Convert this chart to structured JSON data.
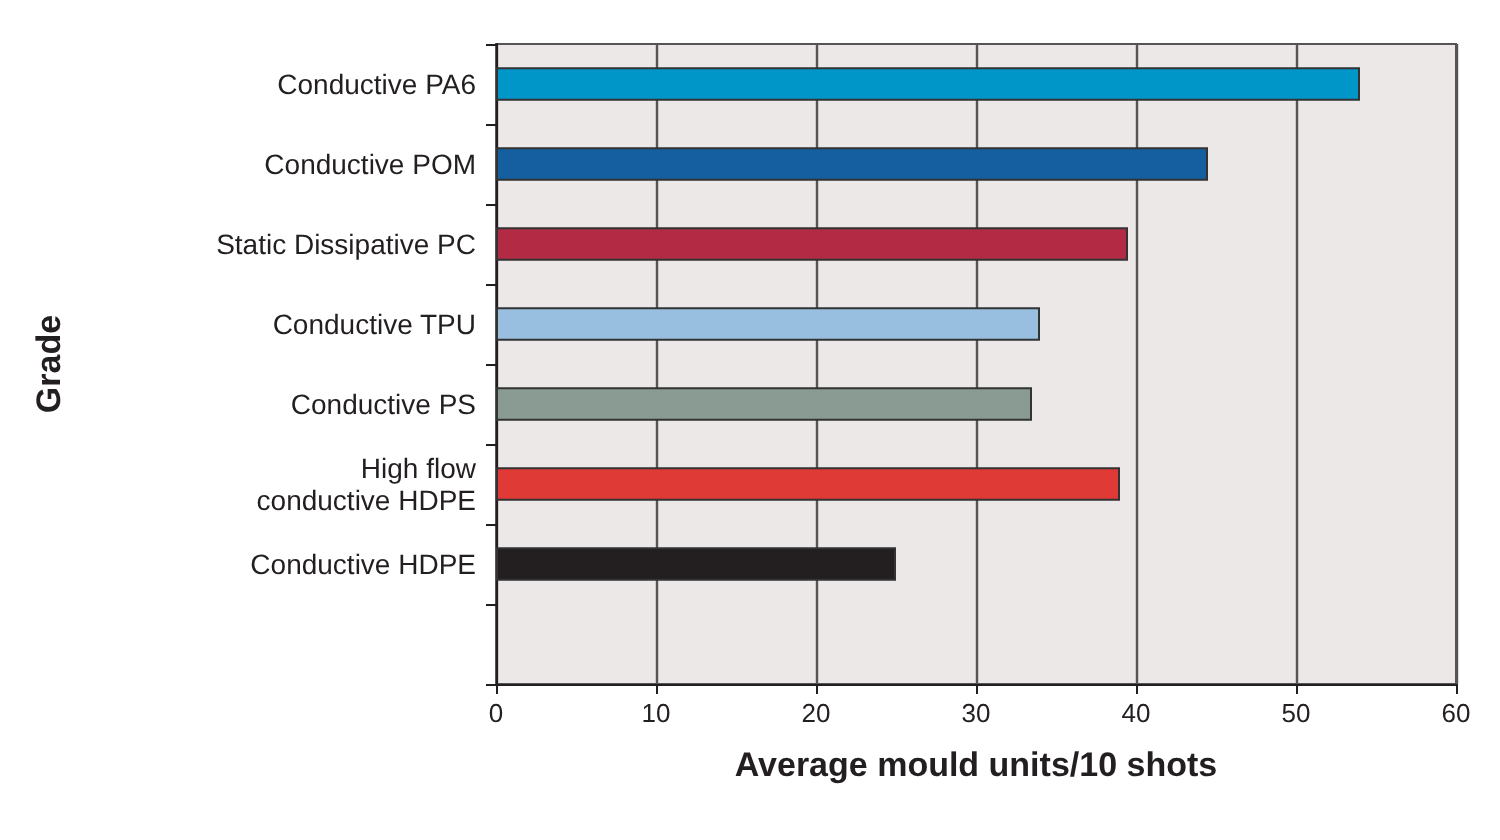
{
  "chart_data": {
    "type": "bar",
    "orientation": "horizontal",
    "xlabel": "Average mould units/10 shots",
    "ylabel": "Grade",
    "categories": [
      "Conductive PA6",
      "Conductive POM",
      "Static Dissipative PC",
      "Conductive TPU",
      "Conductive PS",
      "High flow\nconductive HDPE",
      "Conductive HDPE",
      null
    ],
    "values": [
      54,
      44.5,
      39.5,
      34,
      33.5,
      39,
      25,
      null
    ],
    "colors": [
      "#0096c8",
      "#155fa0",
      "#b22a44",
      "#98bfe0",
      "#8a9b94",
      "#e03a36",
      "#231f20",
      "#888888"
    ],
    "xlim": [
      0,
      60
    ],
    "xticks": [
      0,
      10,
      20,
      30,
      40,
      50,
      60
    ],
    "grid": "x"
  }
}
